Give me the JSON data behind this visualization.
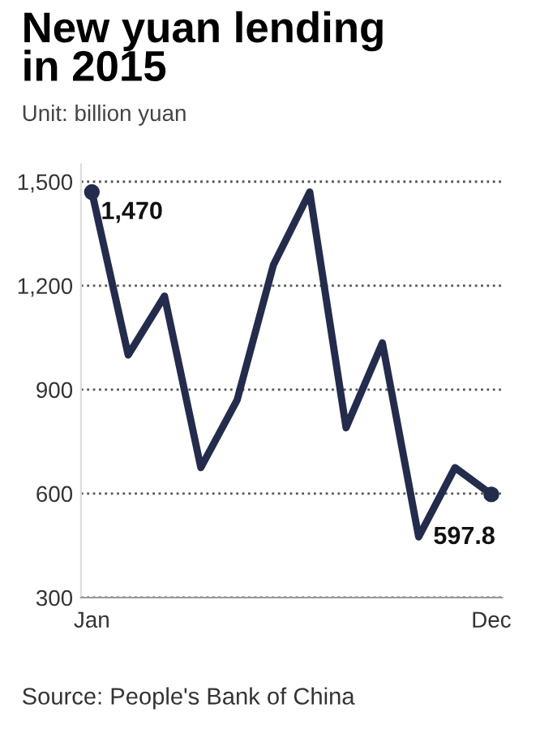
{
  "chart_data": {
    "type": "line",
    "title": "New yuan lending\nin 2015",
    "subtitle": "Unit: billion yuan",
    "annotations": [
      "Source: People's Bank of China"
    ],
    "categories": [
      "Jan",
      null,
      null,
      null,
      null,
      null,
      null,
      null,
      null,
      null,
      null,
      "Dec"
    ],
    "series": [
      {
        "color": "#232c4c",
        "values": [
          1470,
          1000,
          1170,
          675,
          870,
          1260,
          1470,
          790,
          1035,
          475,
          675,
          597.8
        ],
        "value_labels": [
          "1,470",
          null,
          null,
          null,
          null,
          null,
          null,
          null,
          null,
          null,
          null,
          "597.8"
        ]
      }
    ],
    "ylim": [
      300,
      1550
    ],
    "yticks": [
      300,
      600,
      900,
      {
        "value": 1200,
        "label": "1,200"
      },
      {
        "value": 1500,
        "label": "1,500"
      }
    ],
    "grid": "y",
    "line_style": "solid",
    "legend": false
  }
}
